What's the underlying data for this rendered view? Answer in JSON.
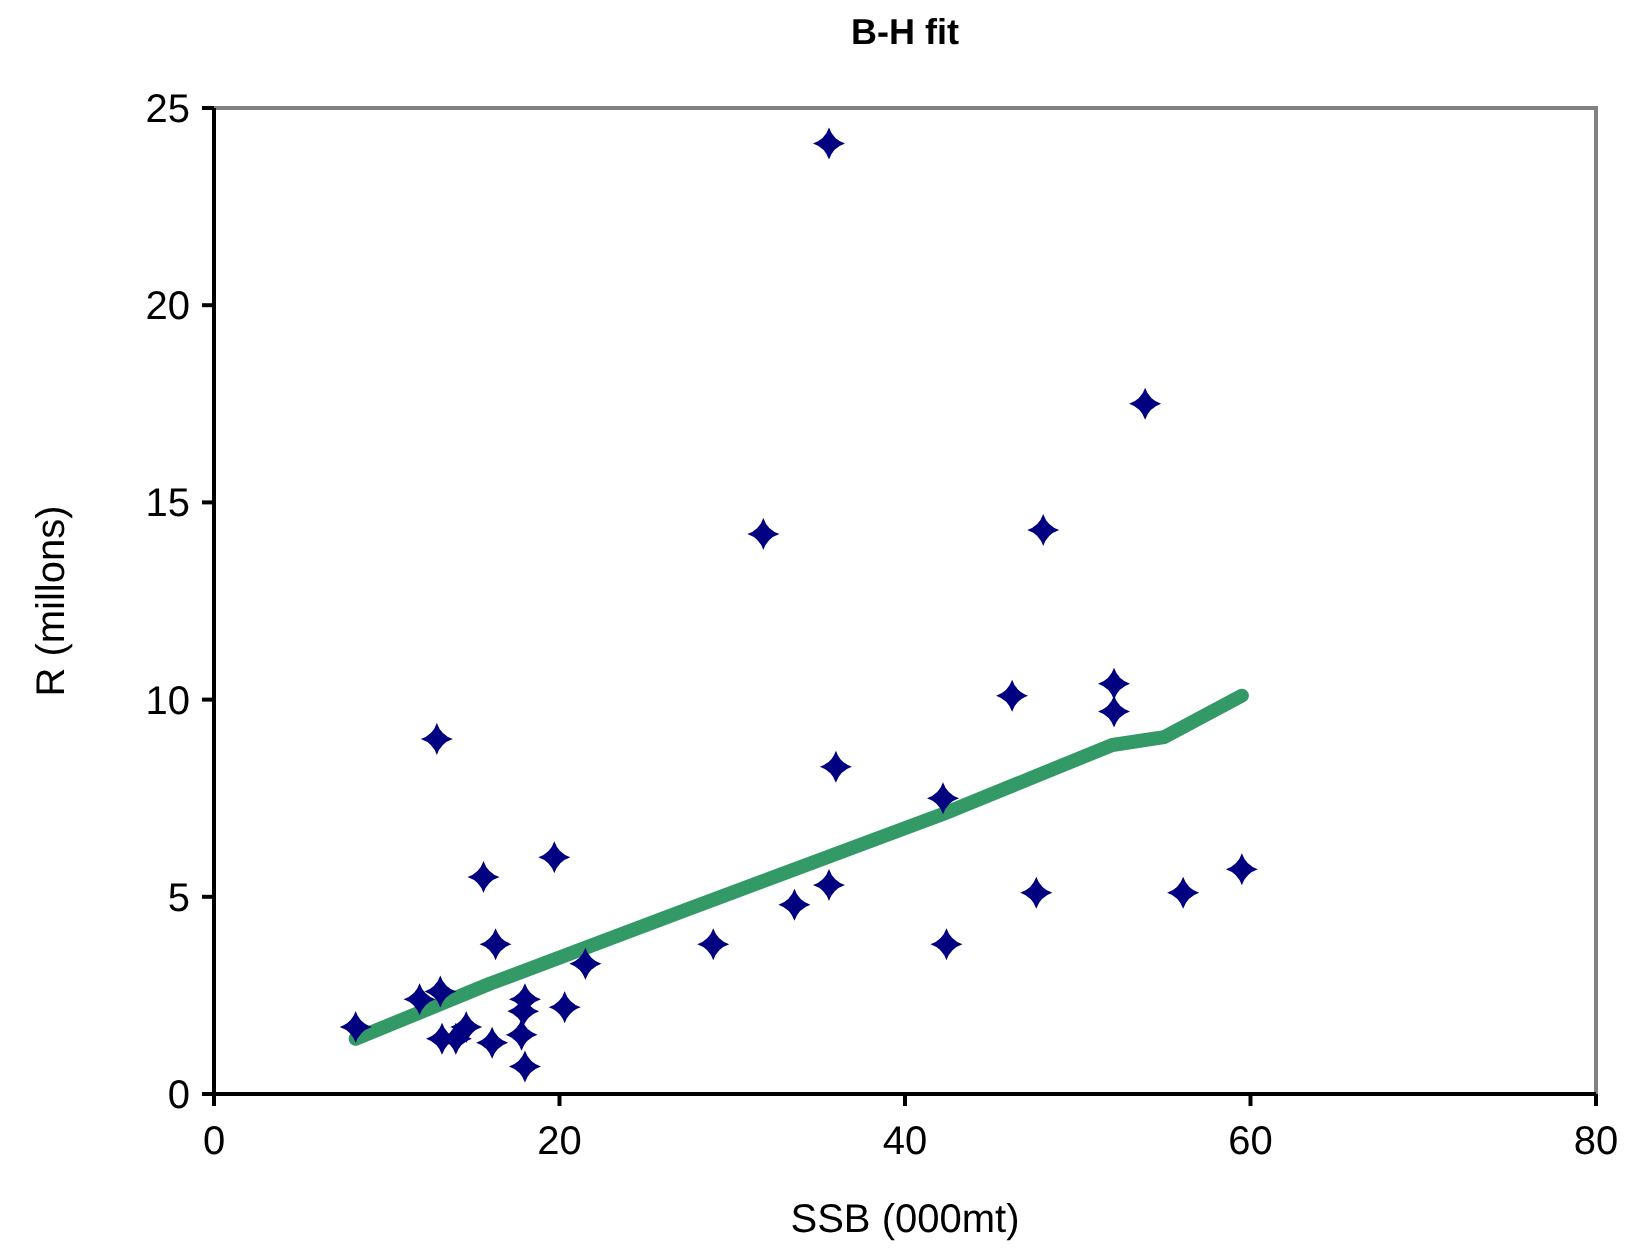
{
  "chart_data": {
    "type": "scatter",
    "title": "B-H fit",
    "xlabel": "SSB (000mt)",
    "ylabel": "R (millons)",
    "xlim": [
      0,
      80
    ],
    "xticks": [
      0,
      20,
      40,
      60,
      80
    ],
    "ylim": [
      0,
      25
    ],
    "yticks": [
      0,
      5,
      10,
      15,
      20,
      25
    ],
    "grid": false,
    "series": [
      {
        "type": "scatter",
        "color": "#000080",
        "marker": "diamond",
        "x": [
          8.2,
          12.9,
          15.6,
          19.7,
          16.3,
          21.5,
          11.9,
          13.1,
          18.0,
          17.9,
          20.3,
          13.2,
          14.6,
          14.0,
          16.1,
          17.8,
          18.0,
          35.6,
          53.9,
          31.8,
          48.0,
          46.2,
          52.1,
          52.1,
          36.0,
          42.2,
          28.9,
          33.6,
          35.6,
          42.4,
          47.6,
          56.1,
          59.5
        ],
        "values": [
          1.7,
          9.0,
          5.5,
          6.0,
          3.8,
          3.3,
          2.4,
          2.6,
          2.4,
          2.1,
          2.2,
          1.4,
          1.7,
          1.4,
          1.3,
          1.5,
          0.7,
          24.1,
          17.5,
          14.2,
          14.3,
          10.1,
          10.4,
          9.7,
          8.3,
          7.5,
          3.8,
          4.8,
          5.3,
          3.8,
          5.1,
          5.1,
          5.7
        ]
      },
      {
        "type": "line",
        "color": "#339966",
        "marker": "none",
        "line_style": "solid",
        "x": [
          8.2,
          16,
          26.9,
          42.2,
          52,
          55,
          59.5
        ],
        "values": [
          1.4,
          2.8,
          4.6,
          7.1,
          8.85,
          9.05,
          10.1
        ]
      }
    ]
  }
}
